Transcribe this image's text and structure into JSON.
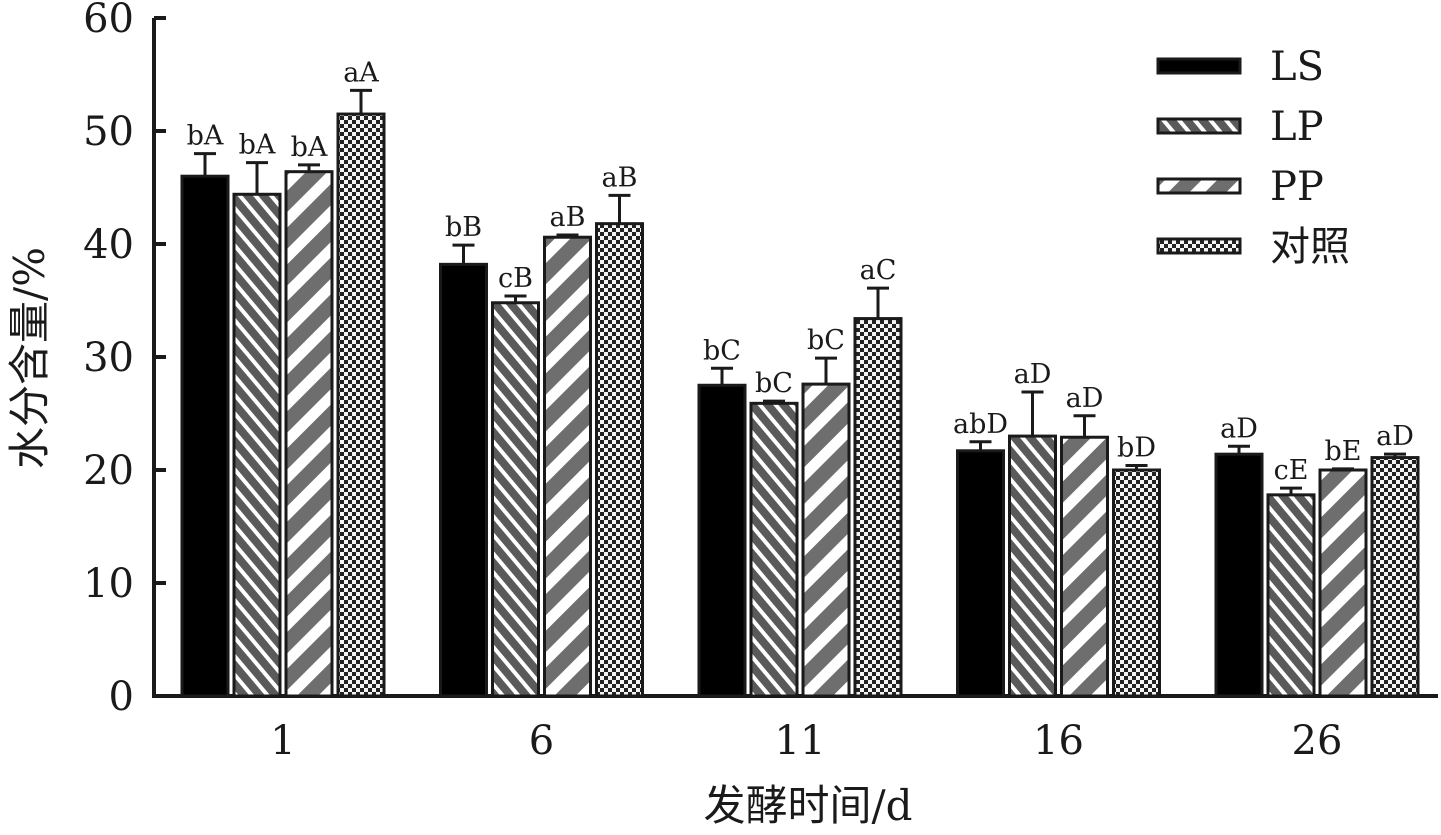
{
  "chart_data": {
    "type": "bar",
    "xlabel": "发酵时间/d",
    "ylabel": "水分含量/%",
    "ylim": [
      0,
      60
    ],
    "yticks": [
      0,
      10,
      20,
      30,
      40,
      50,
      60
    ],
    "categories": [
      "1",
      "6",
      "11",
      "16",
      "26"
    ],
    "legend_position": "top-right",
    "grid": false,
    "series": [
      {
        "name": "LS",
        "pattern": "solid-black",
        "values": [
          46.0,
          38.2,
          27.5,
          21.7,
          21.4
        ],
        "errors": [
          2.0,
          1.7,
          1.5,
          0.8,
          0.7
        ],
        "labels": [
          "bA",
          "bB",
          "bC",
          "abD",
          "aD"
        ]
      },
      {
        "name": "LP",
        "pattern": "fine-hatch",
        "values": [
          44.4,
          34.8,
          25.9,
          23.0,
          17.8
        ],
        "errors": [
          2.8,
          0.6,
          0.2,
          3.9,
          0.6
        ],
        "labels": [
          "bA",
          "cB",
          "bC",
          "aD",
          "cE"
        ]
      },
      {
        "name": "PP",
        "pattern": "wide-stripe",
        "values": [
          46.4,
          40.6,
          27.6,
          22.9,
          20.0
        ],
        "errors": [
          0.6,
          0.2,
          2.3,
          1.9,
          0.1
        ],
        "labels": [
          "bA",
          "aB",
          "bC",
          "aD",
          "bE"
        ]
      },
      {
        "name": "对照",
        "pattern": "checker",
        "values": [
          51.5,
          41.8,
          33.4,
          20.0,
          21.1
        ],
        "errors": [
          2.1,
          2.5,
          2.7,
          0.4,
          0.3
        ],
        "labels": [
          "aA",
          "aB",
          "aC",
          "bD",
          "aD"
        ]
      }
    ]
  }
}
